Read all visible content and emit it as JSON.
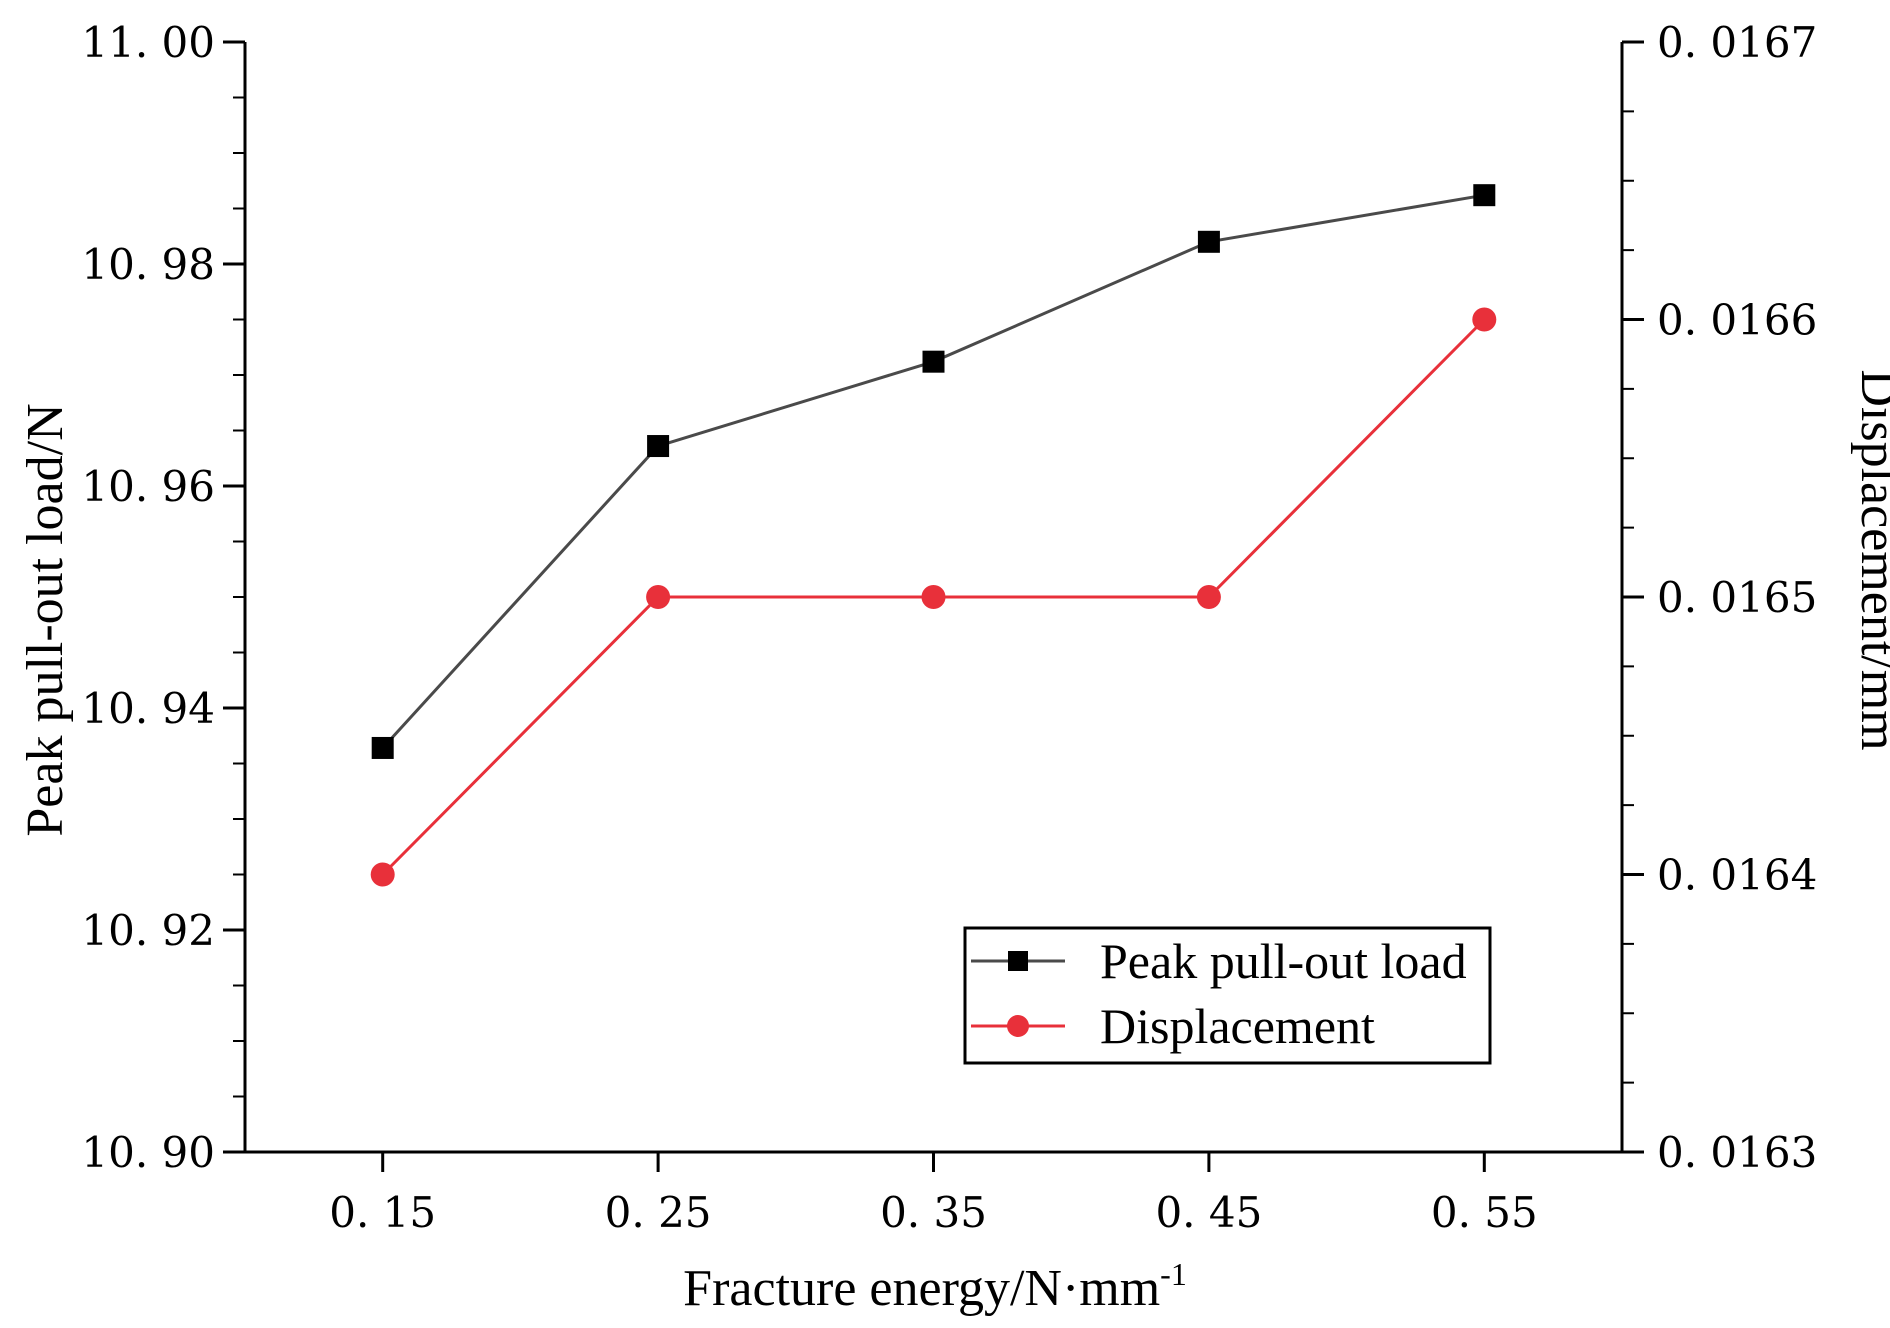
{
  "chart_data": {
    "type": "line",
    "title": "",
    "x": [
      0.15,
      0.25,
      0.35,
      0.45,
      0.55
    ],
    "x_tick_labels": [
      "0. 15",
      "0. 25",
      "0. 35",
      "0. 45",
      "0. 55"
    ],
    "xlabel": "Fracture energy/N·mm",
    "xlabel_superscript": "-1",
    "xlim": [
      0.1,
      0.6
    ],
    "y_left": {
      "label": "Peak pull-out load/N",
      "lim": [
        10.9,
        11.0
      ],
      "ticks": [
        10.9,
        10.92,
        10.94,
        10.96,
        10.98,
        11.0
      ],
      "tick_labels": [
        "10. 90",
        "10. 92",
        "10. 94",
        "10. 96",
        "10. 98",
        "11. 00"
      ]
    },
    "y_right": {
      "label": "Displacement/mm",
      "lim": [
        0.0163,
        0.0167
      ],
      "ticks": [
        0.0163,
        0.0164,
        0.0165,
        0.0166,
        0.0167
      ],
      "tick_labels": [
        "0. 0163",
        "0. 0164",
        "0. 0165",
        "0. 0166",
        "0. 0167"
      ]
    },
    "series": [
      {
        "name": "Peak pull-out load",
        "axis": "left",
        "marker": "square",
        "color": "#4a4a4a",
        "marker_color": "#000000",
        "values": [
          10.9364,
          10.9636,
          10.9712,
          10.982,
          10.9862
        ]
      },
      {
        "name": "Displacement",
        "axis": "right",
        "marker": "circle",
        "color": "#e8303a",
        "marker_color": "#e8303a",
        "values": [
          0.0164,
          0.0165,
          0.0165,
          0.0165,
          0.0166
        ]
      }
    ],
    "legend_position": "lower-right",
    "grid": false
  }
}
